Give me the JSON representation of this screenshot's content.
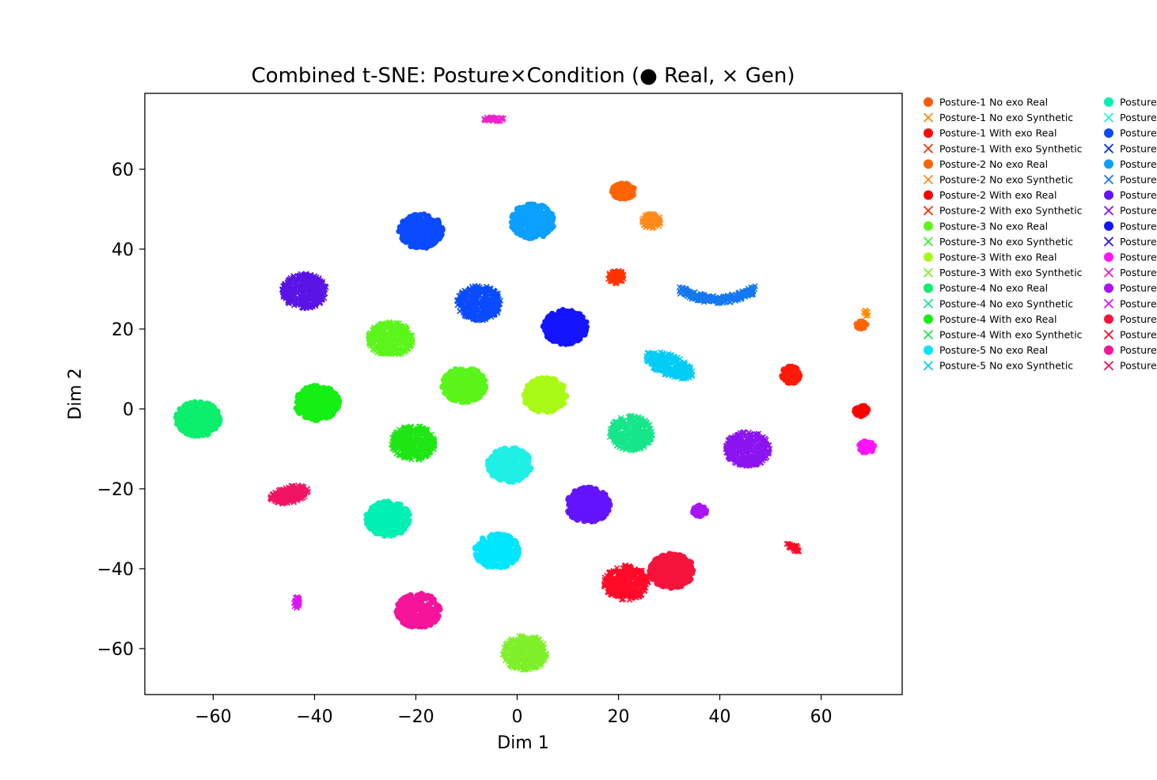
{
  "chart_data": {
    "type": "scatter",
    "title": "Combined t-SNE: Posture×Condition (● Real, × Gen)",
    "xlabel": "Dim 1",
    "ylabel": "Dim 2",
    "xlim": [
      -73.5,
      76
    ],
    "ylim": [
      -71.5,
      79
    ],
    "x_ticks": [
      -60,
      -40,
      -20,
      0,
      20,
      40,
      60
    ],
    "y_ticks": [
      -60,
      -40,
      -20,
      0,
      20,
      40,
      60
    ],
    "x_tick_labels": [
      "−60",
      "−40",
      "−20",
      "0",
      "20",
      "40",
      "60"
    ],
    "y_tick_labels": [
      "−60",
      "−40",
      "−20",
      "0",
      "20",
      "40",
      "60"
    ],
    "grid": false,
    "legend_position": "outside-right",
    "legend": [
      {
        "label": "Posture-1 No exo Real",
        "color": "#ff5a00",
        "marker": "circle"
      },
      {
        "label": "Posture-1 No exo Synthetic",
        "color": "#ff8a00",
        "marker": "x"
      },
      {
        "label": "Posture-1 With exo Real",
        "color": "#ff0a0a",
        "marker": "circle"
      },
      {
        "label": "Posture-1 With exo Synthetic",
        "color": "#ff3300",
        "marker": "x"
      },
      {
        "label": "Posture-2 No exo Real",
        "color": "#ff6400",
        "marker": "circle"
      },
      {
        "label": "Posture-2 No exo Synthetic",
        "color": "#ff8c1a",
        "marker": "x"
      },
      {
        "label": "Posture-2 With exo Real",
        "color": "#ff0000",
        "marker": "circle"
      },
      {
        "label": "Posture-2 With exo Synthetic",
        "color": "#ff2a00",
        "marker": "x"
      },
      {
        "label": "Posture-3 No exo Real",
        "color": "#5cf51b",
        "marker": "circle"
      },
      {
        "label": "Posture-3 No exo Synthetic",
        "color": "#3cf03c",
        "marker": "x"
      },
      {
        "label": "Posture-3 With exo Real",
        "color": "#a8fa14",
        "marker": "circle"
      },
      {
        "label": "Posture-3 With exo Synthetic",
        "color": "#7ef02a",
        "marker": "x"
      },
      {
        "label": "Posture-4 No exo Real",
        "color": "#0aef6c",
        "marker": "circle"
      },
      {
        "label": "Posture-4 No exo Synthetic",
        "color": "#16e68a",
        "marker": "x"
      },
      {
        "label": "Posture-4 With exo Real",
        "color": "#14ef14",
        "marker": "circle"
      },
      {
        "label": "Posture-4 With exo Synthetic",
        "color": "#1ee646",
        "marker": "x"
      },
      {
        "label": "Posture-5 No exo Real",
        "color": "#00e6ff",
        "marker": "circle"
      },
      {
        "label": "Posture-5 No exo Synthetic",
        "color": "#00ccf5",
        "marker": "x"
      },
      {
        "label": "Posture",
        "color": "#00f0b4",
        "marker": "circle"
      },
      {
        "label": "Posture",
        "color": "#1ef0e6",
        "marker": "x"
      },
      {
        "label": "Posture",
        "color": "#0a4bff",
        "marker": "circle"
      },
      {
        "label": "Posture",
        "color": "#0a32e6",
        "marker": "x"
      },
      {
        "label": "Posture",
        "color": "#0aa0ff",
        "marker": "circle"
      },
      {
        "label": "Posture",
        "color": "#1478f0",
        "marker": "x"
      },
      {
        "label": "Posture",
        "color": "#6414ff",
        "marker": "circle"
      },
      {
        "label": "Posture",
        "color": "#8c14f0",
        "marker": "x"
      },
      {
        "label": "Posture",
        "color": "#1414ff",
        "marker": "circle"
      },
      {
        "label": "Posture",
        "color": "#2814e6",
        "marker": "x"
      },
      {
        "label": "Posture",
        "color": "#ff14ff",
        "marker": "circle"
      },
      {
        "label": "Posture",
        "color": "#f014c8",
        "marker": "x"
      },
      {
        "label": "Posture",
        "color": "#aa14f5",
        "marker": "circle"
      },
      {
        "label": "Posture",
        "color": "#dc14f5",
        "marker": "x"
      },
      {
        "label": "Posture",
        "color": "#f5143c",
        "marker": "circle"
      },
      {
        "label": "Posture",
        "color": "#ff0a28",
        "marker": "x"
      },
      {
        "label": "Posture",
        "color": "#f5149a",
        "marker": "circle"
      },
      {
        "label": "Posture",
        "color": "#f01464",
        "marker": "x"
      }
    ],
    "clusters": [
      {
        "x": -4.5,
        "y": 72.5,
        "color": "#ee22cc",
        "marker": "x"
      },
      {
        "x": 21,
        "y": 54.5,
        "color": "#ff6400",
        "marker": "circle"
      },
      {
        "x": 26.5,
        "y": 47,
        "color": "#ff8a1a",
        "marker": "x"
      },
      {
        "x": -19,
        "y": 44.5,
        "color": "#0a4bff",
        "marker": "circle"
      },
      {
        "x": 3,
        "y": 47,
        "color": "#0aa0ff",
        "marker": "circle"
      },
      {
        "x": -42,
        "y": 29.5,
        "color": "#5a14e6",
        "marker": "x"
      },
      {
        "x": 19.5,
        "y": 33,
        "color": "#ff3300",
        "marker": "x"
      },
      {
        "x": 39.5,
        "y": 27.5,
        "color": "#1478f0",
        "marker": "x"
      },
      {
        "x": -7.5,
        "y": 26.5,
        "color": "#0a4bff",
        "marker": "x"
      },
      {
        "x": 9.5,
        "y": 20.5,
        "color": "#1414ff",
        "marker": "circle"
      },
      {
        "x": -25,
        "y": 17.5,
        "color": "#5cf51b",
        "marker": "x"
      },
      {
        "x": 69,
        "y": 24,
        "color": "#ff8a00",
        "marker": "x"
      },
      {
        "x": 68,
        "y": 21,
        "color": "#ff6400",
        "marker": "circle"
      },
      {
        "x": 30,
        "y": 11,
        "color": "#00ccf5",
        "marker": "x"
      },
      {
        "x": 54,
        "y": 8.5,
        "color": "#ff1a0a",
        "marker": "circle"
      },
      {
        "x": -10.5,
        "y": 6,
        "color": "#5cf51b",
        "marker": "circle"
      },
      {
        "x": 5.5,
        "y": 3.5,
        "color": "#a8fa14",
        "marker": "circle"
      },
      {
        "x": -63,
        "y": -2.5,
        "color": "#0aef6c",
        "marker": "circle"
      },
      {
        "x": -39.5,
        "y": 1.5,
        "color": "#14ef14",
        "marker": "circle"
      },
      {
        "x": 68,
        "y": -0.5,
        "color": "#ff0000",
        "marker": "circle"
      },
      {
        "x": -20.5,
        "y": -8.5,
        "color": "#1ee614",
        "marker": "x"
      },
      {
        "x": 22.5,
        "y": -6,
        "color": "#16e68a",
        "marker": "x"
      },
      {
        "x": 45.5,
        "y": -10,
        "color": "#8c14f0",
        "marker": "x"
      },
      {
        "x": 69,
        "y": -9.5,
        "color": "#ff14ff",
        "marker": "circle"
      },
      {
        "x": -1.5,
        "y": -14,
        "color": "#1ef0e6",
        "marker": "circle"
      },
      {
        "x": -45,
        "y": -21.5,
        "color": "#f01464",
        "marker": "x"
      },
      {
        "x": 14,
        "y": -24,
        "color": "#6414ff",
        "marker": "circle"
      },
      {
        "x": 36,
        "y": -25.5,
        "color": "#aa14f5",
        "marker": "circle"
      },
      {
        "x": -25.5,
        "y": -27.5,
        "color": "#00f0b4",
        "marker": "circle"
      },
      {
        "x": -4,
        "y": -35.5,
        "color": "#00e6ff",
        "marker": "circle"
      },
      {
        "x": 54.5,
        "y": -34.5,
        "color": "#ff0a28",
        "marker": "x"
      },
      {
        "x": 30.5,
        "y": -40.5,
        "color": "#f5143c",
        "marker": "circle"
      },
      {
        "x": 21.5,
        "y": -43.5,
        "color": "#ff0a28",
        "marker": "x"
      },
      {
        "x": -43.5,
        "y": -48.5,
        "color": "#dc14f5",
        "marker": "x"
      },
      {
        "x": -19.5,
        "y": -50.5,
        "color": "#f5149a",
        "marker": "circle"
      },
      {
        "x": 1.5,
        "y": -61,
        "color": "#7ef02a",
        "marker": "x"
      }
    ]
  }
}
